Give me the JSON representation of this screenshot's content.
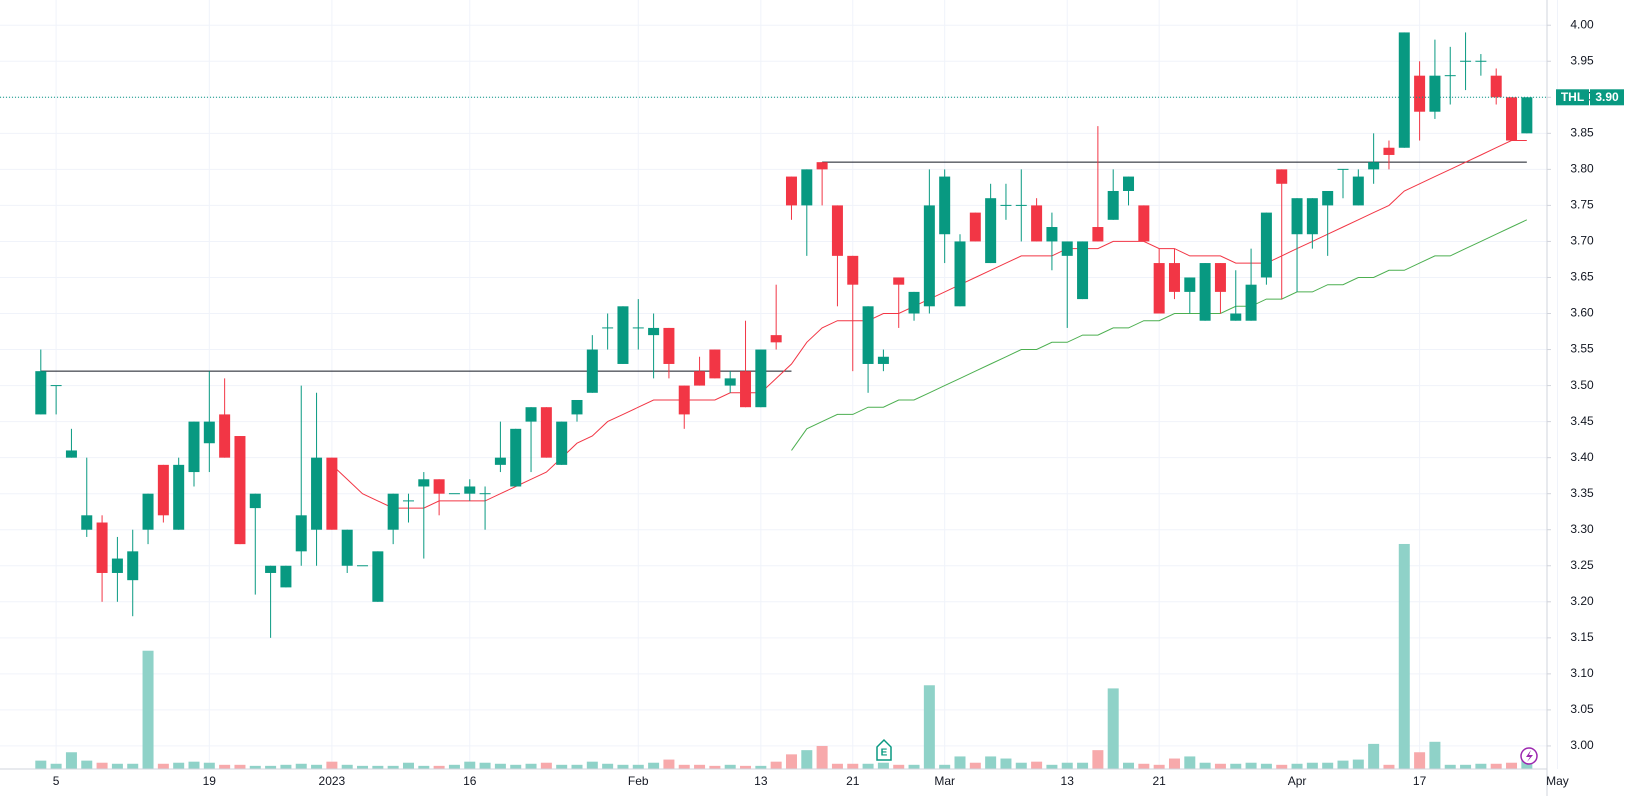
{
  "chart_data": {
    "type": "candlestick",
    "categories": [
      null,
      "5",
      null,
      null,
      null,
      null,
      null,
      null,
      null,
      null,
      null,
      "19",
      null,
      null,
      null,
      null,
      null,
      null,
      null,
      "2023",
      null,
      null,
      null,
      null,
      null,
      null,
      null,
      null,
      "16",
      null,
      null,
      null,
      null,
      null,
      null,
      null,
      null,
      null,
      null,
      "Feb",
      null,
      null,
      null,
      null,
      null,
      null,
      null,
      "13",
      null,
      null,
      null,
      null,
      null,
      "21",
      null,
      null,
      null,
      null,
      null,
      "Mar",
      null,
      null,
      null,
      null,
      null,
      null,
      null,
      "13",
      null,
      null,
      null,
      null,
      null,
      "21",
      null,
      null,
      null,
      null,
      null,
      null,
      null,
      null,
      "Apr",
      null,
      null,
      null,
      null,
      null,
      null,
      null,
      "17",
      null,
      null,
      null,
      null,
      null,
      null,
      null,
      null,
      "May"
    ],
    "open": [
      3.46,
      3.5,
      3.4,
      3.3,
      3.31,
      3.24,
      3.23,
      3.3,
      3.39,
      3.3,
      3.38,
      3.42,
      3.46,
      3.43,
      3.33,
      3.24,
      3.22,
      3.27,
      3.3,
      3.4,
      3.25,
      3.25,
      3.2,
      3.3,
      3.34,
      3.36,
      3.37,
      3.35,
      3.35,
      3.35,
      3.39,
      3.36,
      3.45,
      3.47,
      3.39,
      3.46,
      3.49,
      3.58,
      3.53,
      3.58,
      3.57,
      3.58,
      3.5,
      3.52,
      3.55,
      3.5,
      3.52,
      3.47,
      3.57,
      3.79,
      3.75,
      3.81,
      3.75,
      3.68,
      3.53,
      3.53,
      3.65,
      3.6,
      3.61,
      3.71,
      3.61,
      3.74,
      3.67,
      3.75,
      3.75,
      3.75,
      3.7,
      3.68,
      3.62,
      3.72,
      3.73,
      3.77,
      3.75,
      3.67,
      3.67,
      3.63,
      3.59,
      3.67,
      3.59,
      3.59,
      3.65,
      3.8,
      3.71,
      3.71,
      3.75,
      3.8,
      3.75,
      3.8,
      3.83,
      3.83,
      3.93,
      3.88,
      3.93,
      3.95,
      3.95,
      3.93,
      3.9,
      3.85,
      null,
      null
    ],
    "high": [
      3.55,
      3.5,
      3.44,
      3.4,
      3.32,
      3.29,
      3.3,
      3.35,
      3.39,
      3.4,
      3.45,
      3.52,
      3.51,
      3.43,
      3.35,
      3.25,
      3.25,
      3.5,
      3.49,
      3.4,
      3.3,
      3.25,
      3.27,
      3.35,
      3.35,
      3.38,
      3.37,
      3.35,
      3.37,
      3.36,
      3.45,
      3.44,
      3.47,
      3.47,
      3.45,
      3.48,
      3.57,
      3.6,
      3.61,
      3.62,
      3.6,
      3.58,
      3.5,
      3.54,
      3.55,
      3.52,
      3.59,
      3.55,
      3.64,
      3.79,
      3.8,
      3.81,
      3.75,
      3.68,
      3.61,
      3.55,
      3.65,
      3.63,
      3.8,
      3.8,
      3.71,
      3.74,
      3.78,
      3.78,
      3.8,
      3.76,
      3.74,
      3.7,
      3.7,
      3.86,
      3.8,
      3.79,
      3.75,
      3.69,
      3.69,
      3.65,
      3.67,
      3.67,
      3.66,
      3.69,
      3.74,
      3.8,
      3.76,
      3.76,
      3.77,
      3.8,
      3.8,
      3.85,
      3.84,
      3.99,
      3.95,
      3.98,
      3.97,
      3.99,
      3.96,
      3.94,
      3.9,
      3.9,
      null,
      null
    ],
    "low": [
      3.46,
      3.46,
      3.4,
      3.29,
      3.2,
      3.2,
      3.18,
      3.28,
      3.31,
      3.3,
      3.36,
      3.38,
      3.4,
      3.28,
      3.21,
      3.15,
      3.22,
      3.25,
      3.25,
      3.3,
      3.24,
      3.25,
      3.2,
      3.28,
      3.31,
      3.26,
      3.32,
      3.35,
      3.34,
      3.3,
      3.38,
      3.36,
      3.38,
      3.4,
      3.39,
      3.45,
      3.49,
      3.55,
      3.53,
      3.55,
      3.51,
      3.51,
      3.44,
      3.5,
      3.51,
      3.49,
      3.47,
      3.47,
      3.55,
      3.73,
      3.68,
      3.75,
      3.61,
      3.52,
      3.49,
      3.52,
      3.58,
      3.59,
      3.6,
      3.67,
      3.61,
      3.7,
      3.67,
      3.73,
      3.7,
      3.7,
      3.66,
      3.58,
      3.62,
      3.7,
      3.73,
      3.75,
      3.7,
      3.6,
      3.62,
      3.6,
      3.59,
      3.6,
      3.59,
      3.59,
      3.64,
      3.62,
      3.63,
      3.69,
      3.68,
      3.76,
      3.75,
      3.78,
      3.8,
      3.83,
      3.84,
      3.87,
      3.89,
      3.91,
      3.93,
      3.89,
      3.84,
      3.85,
      null,
      null
    ],
    "close": [
      3.52,
      3.5,
      3.41,
      3.32,
      3.24,
      3.26,
      3.27,
      3.35,
      3.32,
      3.39,
      3.45,
      3.45,
      3.4,
      3.28,
      3.35,
      3.25,
      3.25,
      3.32,
      3.4,
      3.3,
      3.3,
      3.25,
      3.27,
      3.35,
      3.34,
      3.37,
      3.35,
      3.35,
      3.36,
      3.35,
      3.4,
      3.44,
      3.47,
      3.4,
      3.45,
      3.48,
      3.55,
      3.58,
      3.61,
      3.58,
      3.58,
      3.53,
      3.46,
      3.5,
      3.51,
      3.51,
      3.47,
      3.55,
      3.56,
      3.75,
      3.8,
      3.8,
      3.68,
      3.64,
      3.61,
      3.54,
      3.64,
      3.63,
      3.75,
      3.79,
      3.7,
      3.7,
      3.76,
      3.75,
      3.75,
      3.7,
      3.72,
      3.7,
      3.7,
      3.7,
      3.77,
      3.79,
      3.7,
      3.6,
      3.63,
      3.65,
      3.67,
      3.63,
      3.6,
      3.64,
      3.74,
      3.78,
      3.76,
      3.76,
      3.77,
      3.8,
      3.79,
      3.81,
      3.82,
      3.99,
      3.88,
      3.93,
      3.93,
      3.95,
      3.95,
      3.9,
      3.84,
      3.9,
      null,
      null
    ],
    "volume": [
      8,
      5,
      16,
      8,
      6,
      5,
      5,
      113,
      5,
      6,
      7,
      6,
      4,
      4,
      3,
      3,
      4,
      5,
      4,
      7,
      4,
      3,
      3,
      3,
      6,
      3,
      3,
      4,
      7,
      6,
      5,
      4,
      5,
      6,
      4,
      4,
      7,
      5,
      4,
      4,
      6,
      9,
      4,
      4,
      3,
      4,
      3,
      3,
      7,
      14,
      18,
      22,
      5,
      5,
      5,
      6,
      4,
      4,
      80,
      4,
      12,
      6,
      12,
      10,
      6,
      7,
      4,
      6,
      6,
      18,
      77,
      6,
      5,
      4,
      10,
      12,
      6,
      5,
      5,
      6,
      5,
      4,
      5,
      6,
      6,
      8,
      9,
      24,
      4,
      215,
      16,
      26,
      4,
      4,
      5,
      5,
      6,
      8,
      null,
      null
    ],
    "vlim": [
      0,
      300
    ],
    "up_color": "#089981",
    "down_color": "#f23645",
    "volume_up_color": "#8fd2c8",
    "volume_down_color": "#f7a9ab",
    "moving_averages": [
      {
        "color": "#f23645",
        "values": [
          null,
          null,
          null,
          null,
          null,
          null,
          null,
          null,
          null,
          null,
          null,
          null,
          null,
          null,
          null,
          null,
          null,
          null,
          null,
          3.39,
          3.37,
          3.35,
          3.34,
          3.33,
          3.33,
          3.33,
          3.34,
          3.34,
          3.34,
          3.34,
          3.35,
          3.36,
          3.37,
          3.38,
          3.4,
          3.42,
          3.43,
          3.45,
          3.46,
          3.47,
          3.48,
          3.48,
          3.48,
          3.48,
          3.48,
          3.49,
          3.49,
          3.49,
          3.51,
          3.53,
          3.56,
          3.58,
          3.59,
          3.59,
          3.59,
          3.6,
          3.6,
          3.61,
          3.62,
          3.63,
          3.64,
          3.65,
          3.66,
          3.67,
          3.68,
          3.68,
          3.68,
          3.69,
          3.69,
          3.69,
          3.7,
          3.7,
          3.7,
          3.69,
          3.69,
          3.68,
          3.68,
          3.68,
          3.67,
          3.67,
          3.67,
          3.68,
          3.69,
          3.7,
          3.71,
          3.72,
          3.73,
          3.74,
          3.75,
          3.77,
          3.78,
          3.79,
          3.8,
          3.81,
          3.82,
          3.83,
          3.84,
          3.84,
          null,
          null
        ]
      },
      {
        "color": "#4caf50",
        "values": [
          null,
          null,
          null,
          null,
          null,
          null,
          null,
          null,
          null,
          null,
          null,
          null,
          null,
          null,
          null,
          null,
          null,
          null,
          null,
          null,
          null,
          null,
          null,
          null,
          null,
          null,
          null,
          null,
          null,
          null,
          null,
          null,
          null,
          null,
          null,
          null,
          null,
          null,
          null,
          null,
          null,
          null,
          null,
          null,
          null,
          null,
          null,
          null,
          null,
          3.41,
          3.44,
          3.45,
          3.46,
          3.46,
          3.47,
          3.47,
          3.48,
          3.48,
          3.49,
          3.5,
          3.51,
          3.52,
          3.53,
          3.54,
          3.55,
          3.55,
          3.56,
          3.56,
          3.57,
          3.57,
          3.58,
          3.58,
          3.59,
          3.59,
          3.6,
          3.6,
          3.6,
          3.6,
          3.61,
          3.61,
          3.62,
          3.62,
          3.63,
          3.63,
          3.64,
          3.64,
          3.65,
          3.65,
          3.66,
          3.66,
          3.67,
          3.68,
          3.68,
          3.69,
          3.7,
          3.71,
          3.72,
          3.73,
          null,
          null
        ]
      }
    ],
    "levels": [
      {
        "value": 3.52,
        "from": 0,
        "to": 49
      },
      {
        "value": 3.81,
        "from": 51,
        "to": 97
      }
    ],
    "last_price": {
      "symbol": "THL",
      "value": 3.9,
      "label": "3.90"
    },
    "ylim": [
      2.968,
      4.035
    ],
    "yticks": [
      {
        "value": 3,
        "label": "3.00"
      },
      3.05,
      {
        "value": 3.1,
        "label": "3.10"
      },
      3.15,
      {
        "value": 3.2,
        "label": "3.20"
      },
      3.25,
      {
        "value": 3.3,
        "label": "3.30"
      },
      3.35,
      {
        "value": 3.4,
        "label": "3.40"
      },
      3.45,
      {
        "value": 3.5,
        "label": "3.50"
      },
      3.55,
      {
        "value": 3.6,
        "label": "3.60"
      },
      3.65,
      {
        "value": 3.7,
        "label": "3.70"
      },
      3.75,
      {
        "value": 3.8,
        "label": "3.80"
      },
      3.85,
      {
        "value": 3.9,
        "label": "3.90"
      },
      3.95,
      {
        "value": 4,
        "label": "4.00"
      }
    ],
    "grid": true
  }
}
